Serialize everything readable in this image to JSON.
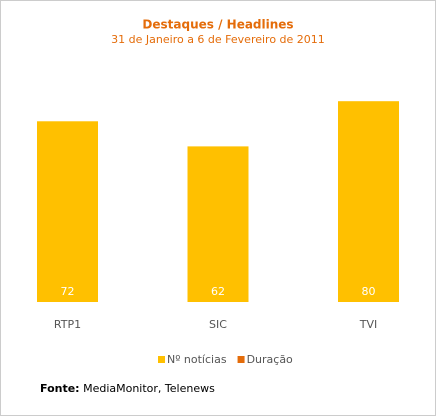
{
  "chart_data": {
    "type": "bar",
    "title": "Destaques / Headlines",
    "subtitle": "31 de Janeiro a 6 de Fevereiro de 2011",
    "categories": [
      "RTP1",
      "SIC",
      "TVI"
    ],
    "series": [
      {
        "name": "Nº notícias",
        "color": "#ffc000",
        "values": [
          72,
          62,
          80
        ]
      },
      {
        "name": "Duração",
        "color": "#e46c0a",
        "values": [
          null,
          null,
          null
        ]
      }
    ],
    "source": {
      "label": "Fonte:",
      "text": "MediaMonitor, Telenews"
    }
  }
}
